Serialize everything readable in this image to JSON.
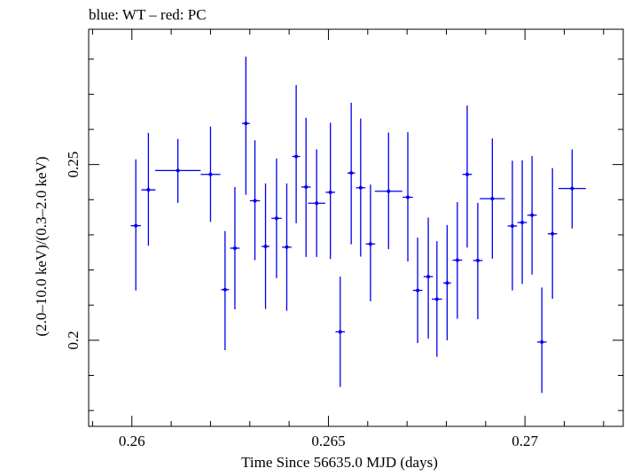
{
  "chart_data": {
    "type": "scatter",
    "title": "blue: WT – red: PC",
    "xlabel": "Time Since 56635.0 MJD (days)",
    "ylabel": "(2.0–10.0 keV)/(0.3–2.0 keV)",
    "xlim": [
      0.2589,
      0.2725
    ],
    "ylim": [
      0.1755,
      0.2885
    ],
    "x_ticks": [
      0.26,
      0.265,
      0.27
    ],
    "x_tick_labels": [
      "0.26",
      "0.265",
      "0.27"
    ],
    "y_ticks": [
      0.2,
      0.25
    ],
    "y_tick_labels": [
      "0.2",
      "0.25"
    ],
    "grid": false,
    "series": [
      {
        "name": "WT",
        "color": "#0000ee",
        "points": [
          {
            "x": 0.2601,
            "xerr": 0.00013,
            "y": 0.2326,
            "ylo": 0.2142,
            "yhi": 0.2515
          },
          {
            "x": 0.26042,
            "xerr": 0.00018,
            "y": 0.2428,
            "ylo": 0.2269,
            "yhi": 0.259
          },
          {
            "x": 0.26117,
            "xerr": 0.00058,
            "y": 0.2483,
            "ylo": 0.2391,
            "yhi": 0.2573
          },
          {
            "x": 0.262,
            "xerr": 0.00025,
            "y": 0.2472,
            "ylo": 0.2337,
            "yhi": 0.2608
          },
          {
            "x": 0.26237,
            "xerr": 0.0001,
            "y": 0.2144,
            "ylo": 0.1972,
            "yhi": 0.2311
          },
          {
            "x": 0.26262,
            "xerr": 0.00012,
            "y": 0.2262,
            "ylo": 0.2088,
            "yhi": 0.2436
          },
          {
            "x": 0.2629,
            "xerr": 0.0001,
            "y": 0.2617,
            "ylo": 0.2414,
            "yhi": 0.2807
          },
          {
            "x": 0.26313,
            "xerr": 0.00013,
            "y": 0.2397,
            "ylo": 0.2228,
            "yhi": 0.2569
          },
          {
            "x": 0.2634,
            "xerr": 0.0001,
            "y": 0.2267,
            "ylo": 0.2089,
            "yhi": 0.2446
          },
          {
            "x": 0.26368,
            "xerr": 0.00013,
            "y": 0.2347,
            "ylo": 0.2177,
            "yhi": 0.2517
          },
          {
            "x": 0.26394,
            "xerr": 0.00012,
            "y": 0.2265,
            "ylo": 0.2084,
            "yhi": 0.2446
          },
          {
            "x": 0.26418,
            "xerr": 0.0001,
            "y": 0.2523,
            "ylo": 0.2333,
            "yhi": 0.2726
          },
          {
            "x": 0.26443,
            "xerr": 0.00012,
            "y": 0.2436,
            "ylo": 0.2237,
            "yhi": 0.2633
          },
          {
            "x": 0.2647,
            "xerr": 0.00022,
            "y": 0.239,
            "ylo": 0.2237,
            "yhi": 0.2543
          },
          {
            "x": 0.26505,
            "xerr": 0.00012,
            "y": 0.2421,
            "ylo": 0.2231,
            "yhi": 0.2619
          },
          {
            "x": 0.2653,
            "xerr": 0.00012,
            "y": 0.2024,
            "ylo": 0.1867,
            "yhi": 0.2181
          },
          {
            "x": 0.26558,
            "xerr": 0.0001,
            "y": 0.2476,
            "ylo": 0.2273,
            "yhi": 0.2676
          },
          {
            "x": 0.26582,
            "xerr": 0.00012,
            "y": 0.2434,
            "ylo": 0.2238,
            "yhi": 0.2631
          },
          {
            "x": 0.26607,
            "xerr": 0.00012,
            "y": 0.2274,
            "ylo": 0.2111,
            "yhi": 0.2443
          },
          {
            "x": 0.26653,
            "xerr": 0.00035,
            "y": 0.2424,
            "ylo": 0.2259,
            "yhi": 0.2591
          },
          {
            "x": 0.26702,
            "xerr": 0.00013,
            "y": 0.2407,
            "ylo": 0.2224,
            "yhi": 0.2592
          },
          {
            "x": 0.26727,
            "xerr": 0.00012,
            "y": 0.2142,
            "ylo": 0.1992,
            "yhi": 0.2292
          },
          {
            "x": 0.26754,
            "xerr": 0.00012,
            "y": 0.2181,
            "ylo": 0.2005,
            "yhi": 0.2349
          },
          {
            "x": 0.26776,
            "xerr": 0.00013,
            "y": 0.2117,
            "ylo": 0.1953,
            "yhi": 0.2282
          },
          {
            "x": 0.26802,
            "xerr": 0.0001,
            "y": 0.2163,
            "ylo": 0.2,
            "yhi": 0.2328
          },
          {
            "x": 0.26828,
            "xerr": 0.00012,
            "y": 0.2228,
            "ylo": 0.2061,
            "yhi": 0.2393
          },
          {
            "x": 0.26853,
            "xerr": 0.00012,
            "y": 0.2472,
            "ylo": 0.2264,
            "yhi": 0.2668
          },
          {
            "x": 0.2688,
            "xerr": 0.00012,
            "y": 0.2227,
            "ylo": 0.206,
            "yhi": 0.2391
          },
          {
            "x": 0.26917,
            "xerr": 0.00032,
            "y": 0.2403,
            "ylo": 0.2232,
            "yhi": 0.2574
          },
          {
            "x": 0.26968,
            "xerr": 0.00012,
            "y": 0.2325,
            "ylo": 0.2142,
            "yhi": 0.2511
          },
          {
            "x": 0.26993,
            "xerr": 0.00012,
            "y": 0.2335,
            "ylo": 0.216,
            "yhi": 0.2512
          },
          {
            "x": 0.27018,
            "xerr": 0.00012,
            "y": 0.2356,
            "ylo": 0.2187,
            "yhi": 0.2524
          },
          {
            "x": 0.27043,
            "xerr": 0.00012,
            "y": 0.1995,
            "ylo": 0.185,
            "yhi": 0.215
          },
          {
            "x": 0.2707,
            "xerr": 0.00012,
            "y": 0.2303,
            "ylo": 0.2118,
            "yhi": 0.249
          },
          {
            "x": 0.2712,
            "xerr": 0.00035,
            "y": 0.2432,
            "ylo": 0.2318,
            "yhi": 0.2543
          }
        ]
      }
    ]
  }
}
